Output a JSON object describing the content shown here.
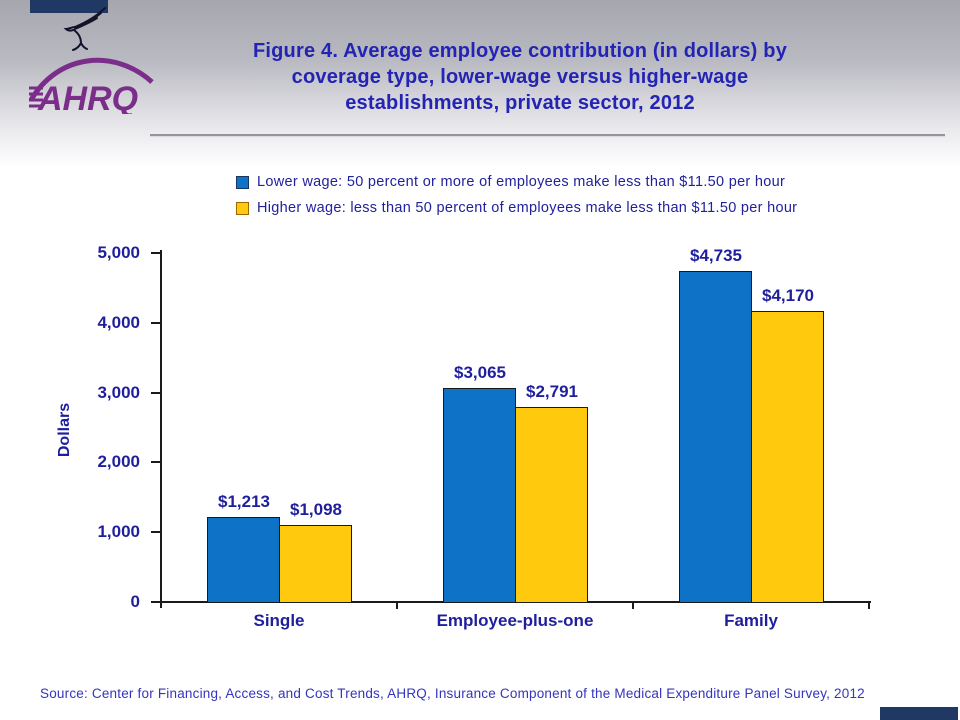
{
  "slide": {
    "logo": {
      "org_abbr": "AHRQ",
      "eagle_icon": "hhs-eagle-icon",
      "brand_purple": "#7A2E8A"
    },
    "title_lines": [
      "Figure 4. Average employee contribution (in dollars) by",
      "coverage type, lower-wage versus higher-wage",
      "establishments, private sector, 2012"
    ],
    "source_text": "Source: Center for Financing, Access, and Cost Trends, AHRQ, Insurance Component of the Medical Expenditure Panel Survey, 2012",
    "colors": {
      "title_text": "#2323B4",
      "chart_text": "#1F1F9E",
      "source_text": "#3434BE",
      "bar_blue": "#0E72C6",
      "bar_yellow": "#FFC90E",
      "corner_mark_navy": "#1F3864",
      "divider_gray": "#95959D"
    }
  },
  "chart_data": {
    "type": "bar",
    "title": "",
    "categories": [
      "Single",
      "Employee-plus-one",
      "Family"
    ],
    "series": [
      {
        "name": "Lower wage: 50 percent or more of employees make less than $11.50 per hour",
        "color": "#0E72C6",
        "values": [
          1213,
          3065,
          4735
        ],
        "data_labels": [
          "$1,213",
          "$3,065",
          "$4,735"
        ]
      },
      {
        "name": "Higher wage: less than 50 percent of employees make less than $11.50 per hour",
        "color": "#FFC90E",
        "values": [
          1098,
          2791,
          4170
        ],
        "data_labels": [
          "$1,098",
          "$2,791",
          "$4,170"
        ]
      }
    ],
    "ylabel": "Dollars",
    "ylim": [
      0,
      5000
    ],
    "ytick_interval": 1000,
    "ytick_labels": [
      "0",
      "1,000",
      "2,000",
      "3,000",
      "4,000",
      "5,000"
    ],
    "grid": false,
    "legend_position": "top-center"
  }
}
